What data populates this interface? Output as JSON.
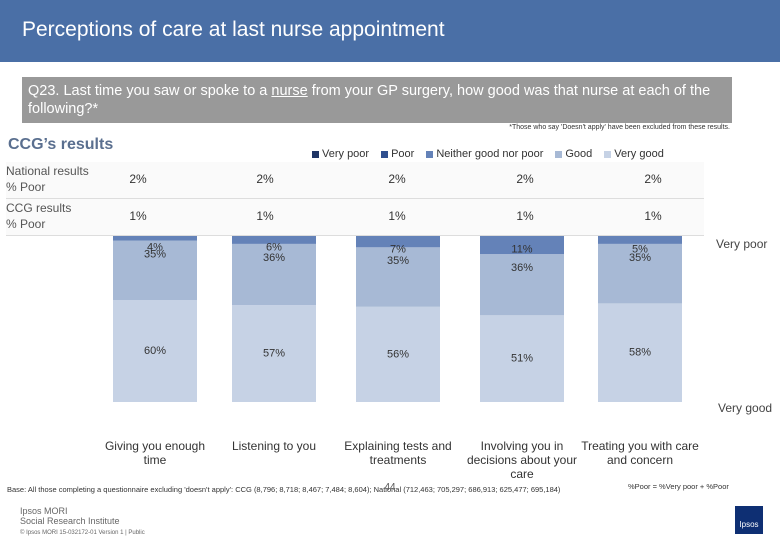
{
  "header": {
    "title": "Perceptions of care at last nurse appointment"
  },
  "question_parts": [
    "Q23. Last time you saw or spoke to a ",
    "nurse",
    " from your GP surgery, how good was that nurse at each of the following?*"
  ],
  "footnote": "*Those who say 'Doesn't apply' have been excluded from these results.",
  "section_title": "CCG’s results",
  "chart_data": {
    "type": "bar",
    "stacked": true,
    "categories": [
      "Giving you enough time",
      "Listening to you",
      "Explaining tests and treatments",
      "Involving you in decisions about your care",
      "Treating you with care and concern"
    ],
    "series": [
      {
        "name": "Very poor",
        "color": "#1f3565",
        "values": [
          0,
          0,
          0,
          0,
          0
        ]
      },
      {
        "name": "Poor",
        "color": "#2f4f8f",
        "values": [
          1,
          1,
          1,
          1,
          1
        ]
      },
      {
        "name": "Neither good nor poor",
        "color": "#6482b8",
        "values": [
          4,
          6,
          7,
          11,
          5
        ],
        "value_labels": [
          "4%",
          "6%",
          "7%",
          "11%",
          "5%"
        ]
      },
      {
        "name": "Good",
        "color": "#a7b9d5",
        "values": [
          35,
          36,
          35,
          36,
          35
        ],
        "value_labels": [
          "35%",
          "36%",
          "35%",
          "36%",
          "35%"
        ]
      },
      {
        "name": "Very good",
        "color": "#c6d2e5",
        "values": [
          60,
          57,
          56,
          51,
          58
        ],
        "value_labels": [
          "60%",
          "57%",
          "56%",
          "51%",
          "58%"
        ]
      }
    ],
    "end_labels": [
      "Very poor",
      "Very good"
    ]
  },
  "table": {
    "columns_label": "",
    "rows": [
      {
        "label": [
          "National results",
          "% Poor"
        ],
        "values": [
          "2%",
          "2%",
          "2%",
          "2%",
          "2%"
        ]
      },
      {
        "label": [
          "CCG results",
          "% Poor"
        ],
        "values": [
          "1%",
          "1%",
          "1%",
          "1%",
          "1%"
        ]
      }
    ]
  },
  "footer": {
    "base": "Base: All those completing a questionnaire excluding 'doesn't apply': CCG (8,796; 8,718; 8,467; 7,484; 8,604); National (712,463; 705,297; 686,913; 625,477; 695,184)",
    "page_number": "44",
    "poor_definition": "%Poor = %Very poor + %Poor",
    "brand_lines": [
      "Ipsos MORI",
      "Social Research Institute"
    ],
    "copyright": "© Ipsos MORI    15-032172-01 Version 1 | Public",
    "logo_text": "Ipsos"
  }
}
